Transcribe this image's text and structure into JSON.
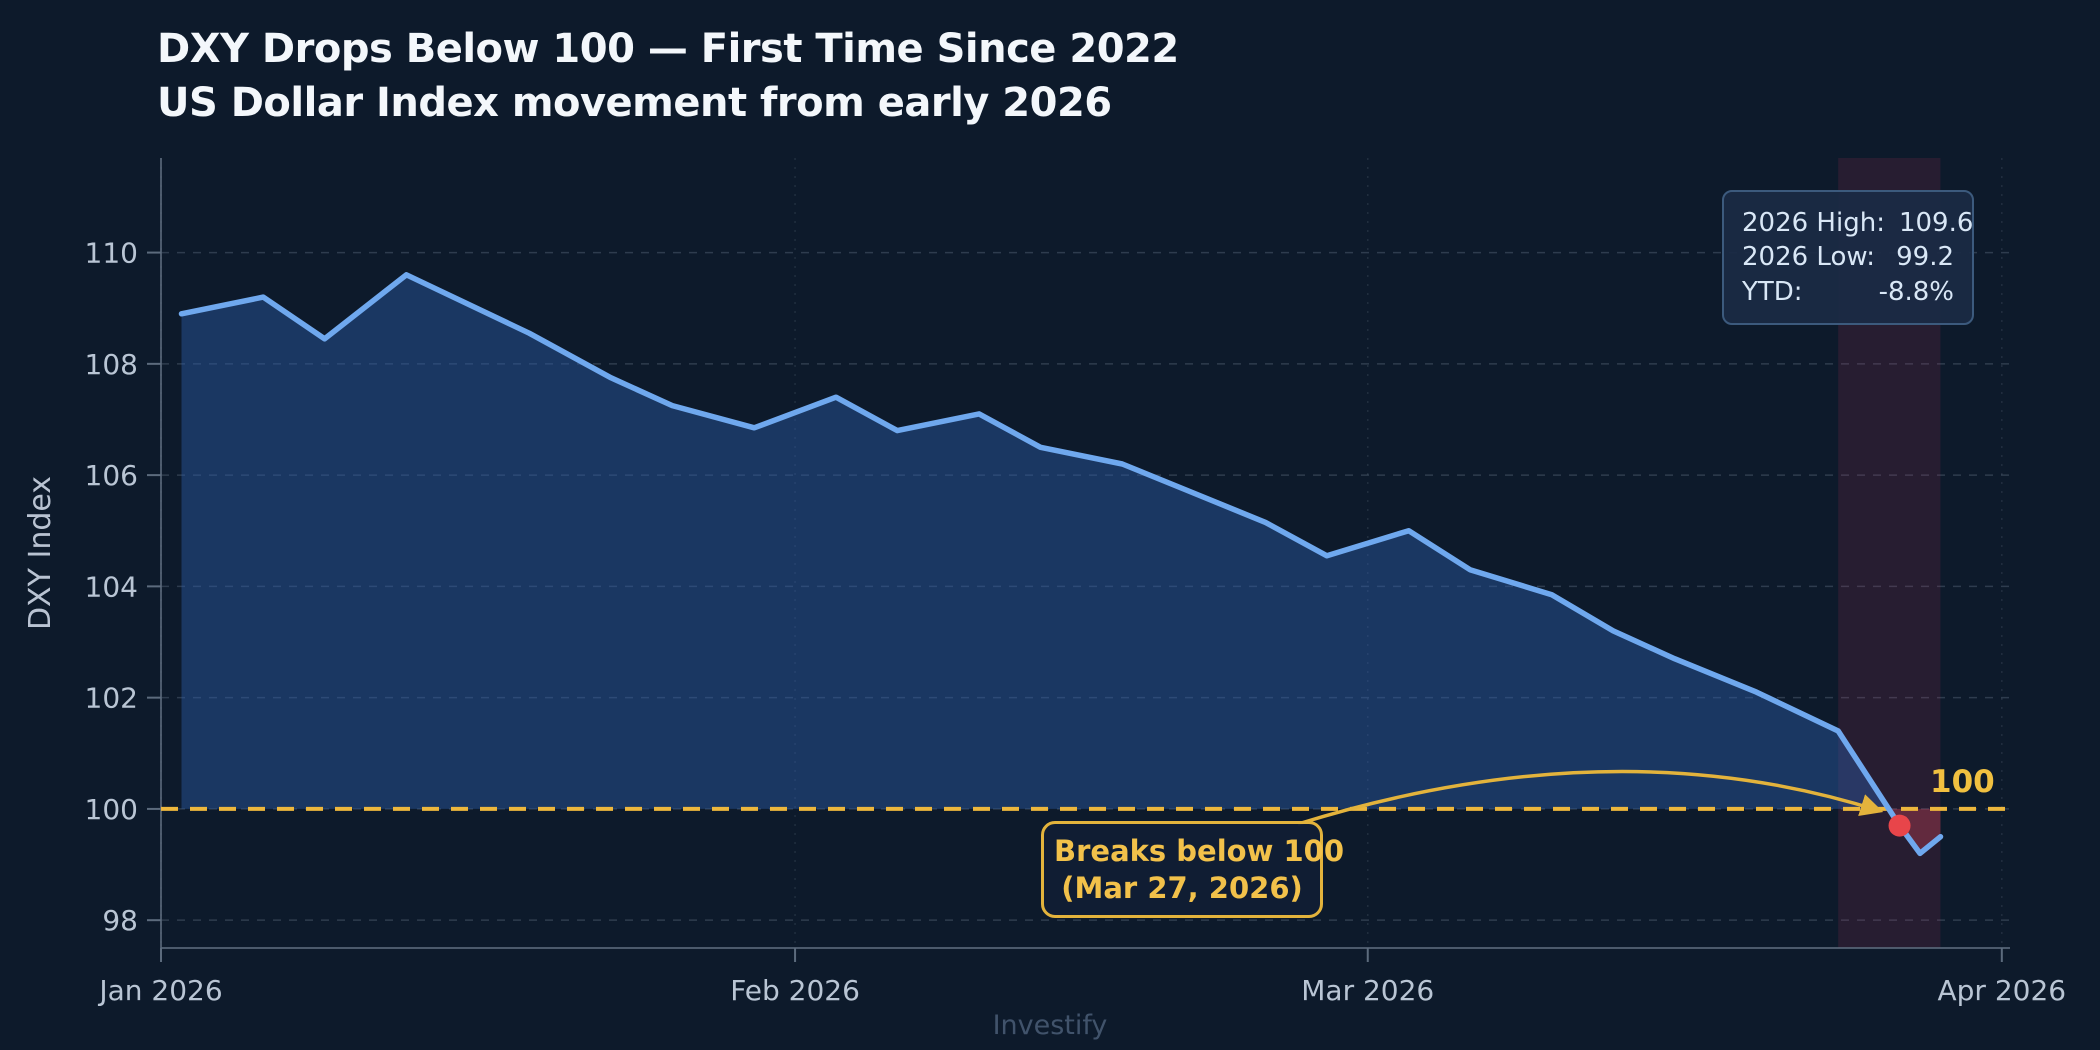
{
  "header": {
    "title": "DXY Drops Below 100 — First Time Since 2022",
    "subtitle": "US Dollar Index movement from early 2026"
  },
  "watermark": "Investify",
  "threshold_label": "100",
  "stats_box": {
    "rows": [
      {
        "label": "2026 High:",
        "value": "109.6"
      },
      {
        "label": "2026 Low:",
        "value": "99.2"
      },
      {
        "label": "YTD:",
        "value": "-8.8%"
      }
    ]
  },
  "annotation": {
    "line1": "Breaks below 100",
    "line2": "(Mar 27, 2026)"
  },
  "colors": {
    "background": "#0d1a2b",
    "line_blue": "#6fa8ee",
    "fill_blue": "rgba(46,95,174,0.42)",
    "fill_red_below": "rgba(224,71,90,0.32)",
    "band_red": "rgba(200,50,90,0.14)",
    "threshold_gold": "#edb73d",
    "annotation_gold": "#e3b33c",
    "dot_red": "#e8454a",
    "grid": "rgba(148,163,184,0.25)",
    "month_grid": "rgba(148,163,184,0.15)",
    "spine": "#5c6b7d",
    "tick_text": "#b9c5d4",
    "axis_label_text": "#b9c3d2"
  },
  "chart_data": {
    "type": "line",
    "title": "DXY Drops Below 100 — First Time Since 2022",
    "subtitle": "US Dollar Index movement from early 2026",
    "xlabel": "",
    "ylabel": "DXY Index",
    "x_ticks": [
      {
        "label": "Jan 2026",
        "day": 0
      },
      {
        "label": "Feb 2026",
        "day": 31
      },
      {
        "label": "Mar 2026",
        "day": 59
      },
      {
        "label": "Apr 2026",
        "day": 90
      }
    ],
    "y_ticks": [
      98,
      100,
      102,
      104,
      106,
      108,
      110
    ],
    "ylim": [
      97.5,
      111.7
    ],
    "xlim_days": [
      0,
      90.4
    ],
    "grid": true,
    "threshold": 100,
    "highlight_band_days": [
      82,
      87
    ],
    "break_point": {
      "date": "Mar 27, 2026",
      "day": 85,
      "value": 99.7
    },
    "series": [
      {
        "name": "DXY Index",
        "points": [
          {
            "date": "Jan 2",
            "day": 1,
            "value": 108.9
          },
          {
            "date": "Jan 6",
            "day": 5,
            "value": 109.2
          },
          {
            "date": "Jan 9",
            "day": 8,
            "value": 108.45
          },
          {
            "date": "Jan 13",
            "day": 12,
            "value": 109.6
          },
          {
            "date": "Jan 19",
            "day": 18,
            "value": 108.55
          },
          {
            "date": "Jan 23",
            "day": 22,
            "value": 107.75
          },
          {
            "date": "Jan 26",
            "day": 25,
            "value": 107.25
          },
          {
            "date": "Jan 30",
            "day": 29,
            "value": 106.85
          },
          {
            "date": "Feb 3",
            "day": 33,
            "value": 107.4
          },
          {
            "date": "Feb 6",
            "day": 36,
            "value": 106.8
          },
          {
            "date": "Feb 10",
            "day": 40,
            "value": 107.1
          },
          {
            "date": "Feb 13",
            "day": 43,
            "value": 106.5
          },
          {
            "date": "Feb 17",
            "day": 47,
            "value": 106.2
          },
          {
            "date": "Feb 20",
            "day": 50,
            "value": 105.75
          },
          {
            "date": "Feb 24",
            "day": 54,
            "value": 105.15
          },
          {
            "date": "Feb 27",
            "day": 57,
            "value": 104.55
          },
          {
            "date": "Mar 3",
            "day": 61,
            "value": 105.0
          },
          {
            "date": "Mar 6",
            "day": 64,
            "value": 104.3
          },
          {
            "date": "Mar 10",
            "day": 68,
            "value": 103.85
          },
          {
            "date": "Mar 13",
            "day": 71,
            "value": 103.2
          },
          {
            "date": "Mar 16",
            "day": 74,
            "value": 102.7
          },
          {
            "date": "Mar 20",
            "day": 78,
            "value": 102.1
          },
          {
            "date": "Mar 24",
            "day": 82,
            "value": 101.4
          },
          {
            "date": "Mar 27",
            "day": 85,
            "value": 99.7
          },
          {
            "date": "Mar 28",
            "day": 86,
            "value": 99.2
          },
          {
            "date": "Mar 29",
            "day": 87,
            "value": 99.5
          }
        ]
      }
    ],
    "stats": {
      "high_2026": 109.6,
      "low_2026": 99.2,
      "ytd_pct": -8.8
    },
    "legend": null
  }
}
